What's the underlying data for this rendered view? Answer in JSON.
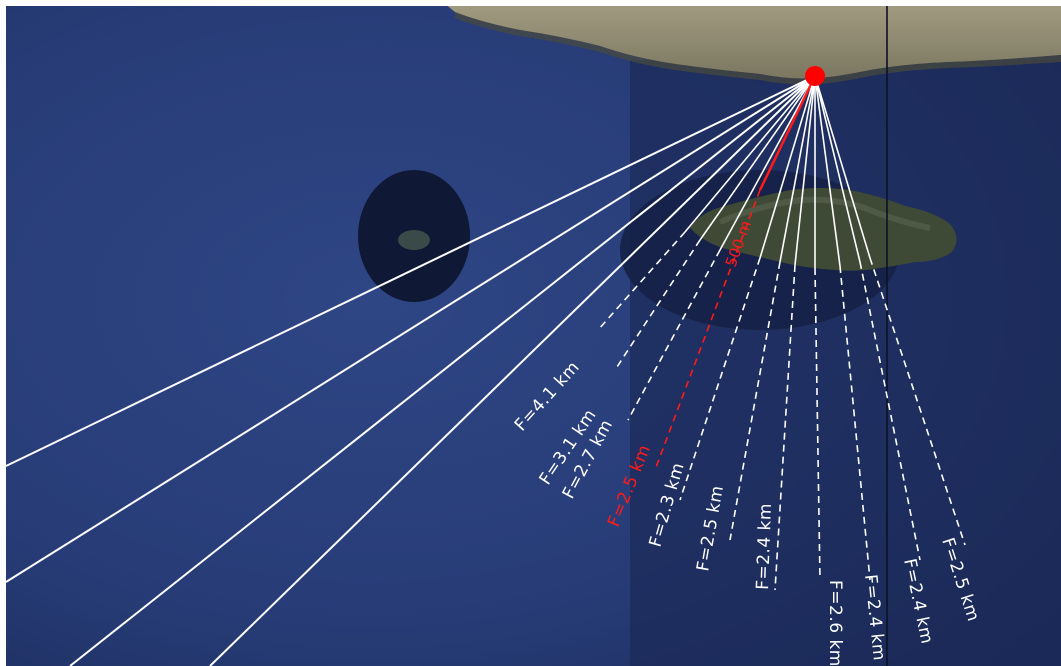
{
  "map": {
    "colors": {
      "sea": "#263a74",
      "sea_dark": "#1a2a55",
      "land": "#8f8a6f",
      "island_vegetation": "#3f4a35",
      "fetch_line": "#ffffff",
      "main_fetch_line": "#ff1a1a",
      "origin_point": "#ff0000"
    },
    "origin_marker": {
      "name": "origin-point",
      "color": "#ff0000"
    },
    "fetch_labels": [
      {
        "text": "F=4.1 km",
        "highlight": false
      },
      {
        "text": "F=3.1 km",
        "highlight": false
      },
      {
        "text": "F=2.7 km",
        "highlight": false
      },
      {
        "text": "F=2.5 km",
        "highlight": true
      },
      {
        "text": "F=2.3 km",
        "highlight": false
      },
      {
        "text": "F=2.5 km",
        "highlight": false
      },
      {
        "text": "F=2.4 km",
        "highlight": false
      },
      {
        "text": "F=2.6 km",
        "highlight": false
      },
      {
        "text": "F=2.4 km",
        "highlight": false
      },
      {
        "text": "F=2.4 km",
        "highlight": false
      },
      {
        "text": "F=2.5 km",
        "highlight": false
      }
    ],
    "main_line_label": "500 m"
  }
}
